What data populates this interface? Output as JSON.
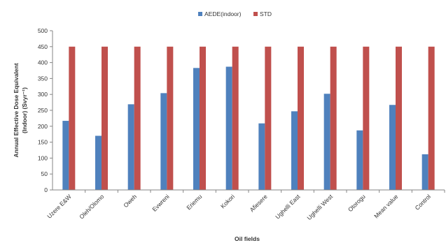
{
  "chart_data": {
    "type": "bar",
    "categories": [
      "Uzere E&W",
      "Oleh/Olomo",
      "Oweh",
      "Evwreni",
      "Eriemu",
      "Kokori",
      "Afiesere",
      "Ughelli East",
      "Ughelli West",
      "Otorogu",
      "Mean value",
      "Control"
    ],
    "series": [
      {
        "name": "AEDE(indoor)",
        "color": "#4F81BD",
        "values": [
          217,
          170,
          269,
          304,
          383,
          387,
          209,
          247,
          302,
          187,
          267,
          112
        ]
      },
      {
        "name": "STD",
        "color": "#C0504D",
        "values": [
          450,
          450,
          450,
          450,
          450,
          450,
          450,
          450,
          450,
          450,
          450,
          450
        ]
      }
    ],
    "xlabel": "Oil fields",
    "ylabel_line1": "Annual Effective Dose Equivalent",
    "ylabel_line2": "(Indoor) (Svyr⁻¹)",
    "ylim": [
      0,
      500
    ],
    "yticks": [
      0,
      50,
      100,
      150,
      200,
      250,
      300,
      350,
      400,
      450,
      500
    ],
    "grid": false,
    "legend_position": "top-center"
  }
}
